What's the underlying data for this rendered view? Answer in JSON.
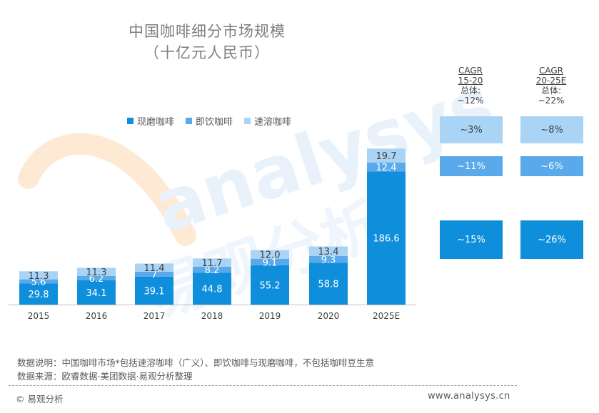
{
  "title_line1": "中国咖啡细分市场规模",
  "title_line2": "（十亿元人民币）",
  "colors": {
    "fresh": "#0f8fdb",
    "rtd": "#5aa9ea",
    "instant": "#a9d4f5",
    "label_dark": "#404040",
    "axis": "#bfbfbf"
  },
  "chart_data": {
    "type": "bar",
    "stacked": true,
    "title": "中国咖啡细分市场规模（十亿元人民币）",
    "categories": [
      "2015",
      "2016",
      "2017",
      "2018",
      "2019",
      "2020",
      "2025E"
    ],
    "series": [
      {
        "name": "现磨咖啡",
        "values": [
          29.8,
          34.1,
          39.1,
          44.8,
          55.2,
          58.8,
          186.6
        ]
      },
      {
        "name": "即饮咖啡",
        "values": [
          5.6,
          6.2,
          7,
          8.2,
          9.1,
          9.3,
          12.4
        ]
      },
      {
        "name": "速溶咖啡",
        "values": [
          11.3,
          11.3,
          11.4,
          11.7,
          12.0,
          13.4,
          19.7
        ]
      }
    ],
    "value_labels": [
      [
        "29.8",
        "34.1",
        "39.1",
        "44.8",
        "55.2",
        "58.8",
        "186.6"
      ],
      [
        "5.6",
        "6.2",
        "7",
        "8.2",
        "9.1",
        "9.3",
        "12.4"
      ],
      [
        "11.3",
        "11.3",
        "11.4",
        "11.7",
        "12.0",
        "13.4",
        "19.7"
      ]
    ],
    "legend_position": "top",
    "grid": false
  },
  "cagr": {
    "headers": [
      {
        "label": "CAGR",
        "period": "15-20",
        "total_label": "总体:",
        "total": "~12%"
      },
      {
        "label": "CAGR",
        "period": "20-25E",
        "total_label": "总体:",
        "total": "~22%"
      }
    ],
    "rows": [
      {
        "segment": "速溶咖啡",
        "values": [
          "~3%",
          "~8%"
        ]
      },
      {
        "segment": "即饮咖啡",
        "values": [
          "~11%",
          "~6%"
        ]
      },
      {
        "segment": "现磨咖啡",
        "values": [
          "~15%",
          "~26%"
        ]
      }
    ]
  },
  "notes": {
    "line1": "数据说明：中国咖啡市场*包括速溶咖啡（广义）、即饮咖啡与现磨咖啡，不包括咖啡豆生意",
    "line2": "数据来源：欧睿数据·美团数据·易观分析整理"
  },
  "footer": {
    "copyright": "© 易观分析",
    "website": "www.analysys.cn"
  },
  "watermark": {
    "text_latin": "analysys",
    "text_cn": "易观分析"
  }
}
